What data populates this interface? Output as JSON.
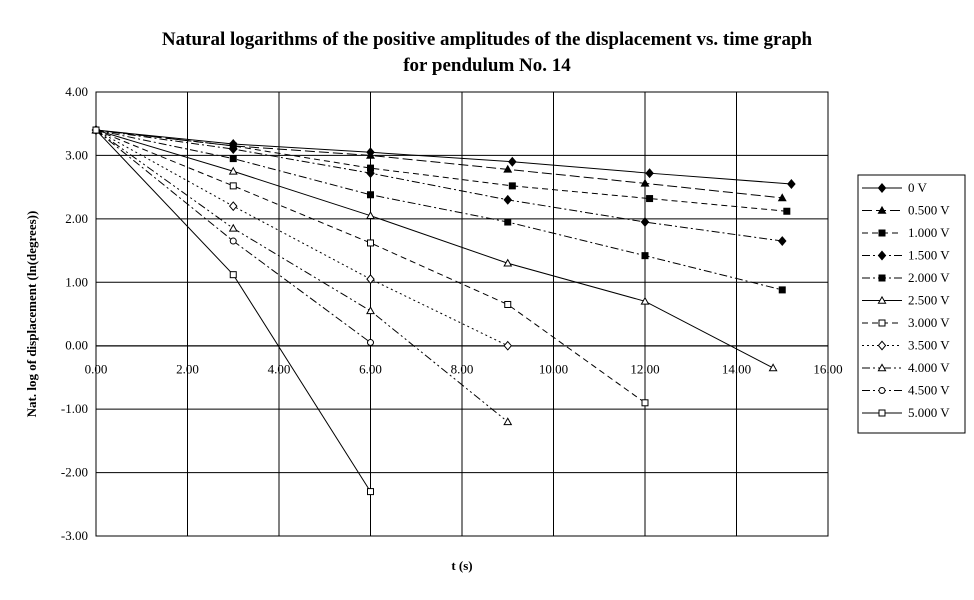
{
  "chart_data": {
    "type": "line",
    "title_line1": "Natural logarithms of the positive amplitudes of the displacement vs. time graph",
    "title_line2": "for pendulum No. 14",
    "xlabel": "t (s)",
    "ylabel": "Nat. log of displacement (ln(degrees))",
    "xlim": [
      0,
      16
    ],
    "ylim": [
      -3,
      4
    ],
    "x_ticks": [
      "0.00",
      "2.00",
      "4.00",
      "6.00",
      "8.00",
      "10.00",
      "12.00",
      "14.00",
      "16.00"
    ],
    "y_ticks": [
      "4.00",
      "3.00",
      "2.00",
      "1.00",
      "0.00",
      "-1.00",
      "-2.00",
      "-3.00"
    ],
    "grid": true,
    "legend_position": "right",
    "series": [
      {
        "name": "0 V",
        "marker": "diamond-filled",
        "dash": "solid",
        "points": [
          [
            0,
            3.4
          ],
          [
            3.0,
            3.18
          ],
          [
            6.0,
            3.05
          ],
          [
            9.1,
            2.9
          ],
          [
            12.1,
            2.72
          ],
          [
            15.2,
            2.55
          ]
        ]
      },
      {
        "name": "0.500 V",
        "marker": "triangle-filled",
        "dash": "longdash",
        "points": [
          [
            0,
            3.4
          ],
          [
            3.0,
            3.15
          ],
          [
            6.0,
            3.0
          ],
          [
            9.0,
            2.78
          ],
          [
            12.0,
            2.56
          ],
          [
            15.0,
            2.33
          ]
        ]
      },
      {
        "name": "1.000 V",
        "marker": "square-filled",
        "dash": "dash",
        "points": [
          [
            0,
            3.4
          ],
          [
            3.0,
            3.15
          ],
          [
            6.0,
            2.8
          ],
          [
            9.1,
            2.52
          ],
          [
            12.1,
            2.32
          ],
          [
            15.1,
            2.12
          ]
        ]
      },
      {
        "name": "1.500 V",
        "marker": "diamond-filled",
        "dash": "dashdot",
        "points": [
          [
            0,
            3.4
          ],
          [
            3.0,
            3.1
          ],
          [
            6.0,
            2.72
          ],
          [
            9.0,
            2.3
          ],
          [
            12.0,
            1.95
          ],
          [
            15.0,
            1.65
          ]
        ]
      },
      {
        "name": "2.000 V",
        "marker": "square-filled",
        "dash": "dashdot",
        "points": [
          [
            0,
            3.4
          ],
          [
            3.0,
            2.95
          ],
          [
            6.0,
            2.38
          ],
          [
            9.0,
            1.95
          ],
          [
            12.0,
            1.42
          ],
          [
            15.0,
            0.88
          ]
        ]
      },
      {
        "name": "2.500 V",
        "marker": "triangle-open",
        "dash": "solid",
        "points": [
          [
            0,
            3.4
          ],
          [
            3.0,
            2.75
          ],
          [
            6.0,
            2.05
          ],
          [
            9.0,
            1.3
          ],
          [
            12.0,
            0.7
          ],
          [
            14.8,
            -0.35
          ]
        ]
      },
      {
        "name": "3.000 V",
        "marker": "square-open",
        "dash": "dash",
        "points": [
          [
            0,
            3.4
          ],
          [
            3.0,
            2.52
          ],
          [
            6.0,
            1.62
          ],
          [
            9.0,
            0.65
          ],
          [
            12.0,
            -0.9
          ]
        ]
      },
      {
        "name": "3.500 V",
        "marker": "diamond-open",
        "dash": "dot",
        "points": [
          [
            0,
            3.4
          ],
          [
            3.0,
            2.2
          ],
          [
            6.0,
            1.05
          ],
          [
            9.0,
            0.0
          ]
        ]
      },
      {
        "name": "4.000 V",
        "marker": "triangle-open",
        "dash": "dashdotdot",
        "points": [
          [
            0,
            3.4
          ],
          [
            3.0,
            1.85
          ],
          [
            6.0,
            0.55
          ],
          [
            9.0,
            -1.2
          ]
        ]
      },
      {
        "name": "4.500 V",
        "marker": "circle-open",
        "dash": "dashdot",
        "points": [
          [
            0,
            3.4
          ],
          [
            3.0,
            1.65
          ],
          [
            6.0,
            0.05
          ]
        ]
      },
      {
        "name": "5.000 V",
        "marker": "square-open",
        "dash": "solid",
        "points": [
          [
            0,
            3.4
          ],
          [
            3.0,
            1.12
          ],
          [
            6.0,
            -2.3
          ]
        ]
      }
    ]
  }
}
